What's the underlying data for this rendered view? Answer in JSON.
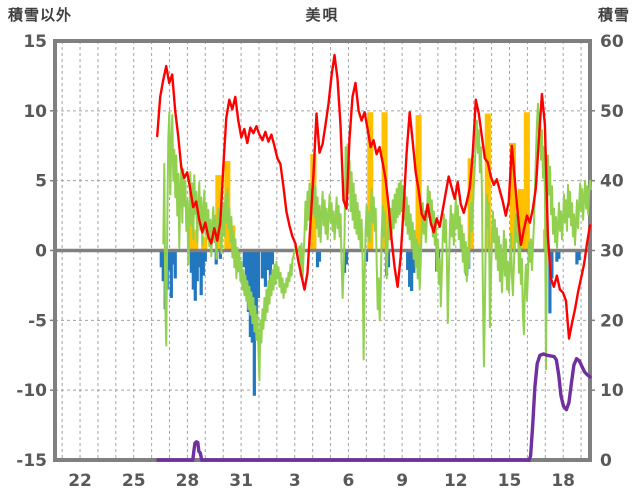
{
  "title": "美唄",
  "header": {
    "left_axis_title": "積雪以外",
    "right_axis_title": "積雪"
  },
  "chart_data": {
    "type": "line+bar",
    "title": "美唄",
    "x_axis": {
      "labels": [
        "22",
        "25",
        "28",
        "31",
        "3",
        "6",
        "9",
        "12",
        "15",
        "18"
      ],
      "label_positions": [
        22,
        25,
        28,
        31,
        34,
        37,
        40,
        43,
        46,
        49
      ],
      "min": 20.6,
      "max": 50.5,
      "unit": "day of month (values above 31 belong to the following month)",
      "grid_interval": 1
    },
    "left_axis": {
      "title": "積雪以外",
      "min": -15,
      "max": 15,
      "ticks": [
        15,
        10,
        5,
        0,
        -5,
        -10,
        -15
      ]
    },
    "right_axis": {
      "title": "積雪",
      "min": 0,
      "max": 60,
      "ticks": [
        60,
        50,
        40,
        30,
        20,
        10,
        0
      ]
    },
    "grid": {
      "color": "#A3A3A3",
      "dash": "3 3"
    },
    "frame_color": "#808080",
    "zero_line_color": "#808080",
    "text_color": "#595959",
    "series": [
      {
        "id": "red_line",
        "type": "line",
        "axis": "left",
        "color": "#FF0000",
        "width": 2.4,
        "x_start": 26.31,
        "x_end": 50.5,
        "values": [
          8.2,
          11.0,
          12.2,
          13.2,
          12.0,
          12.6,
          10.0,
          8.2,
          6.0,
          5.2,
          5.6,
          4.4,
          3.1,
          3.5,
          2.2,
          1.3,
          2.0,
          1.0,
          0.5,
          1.6,
          0.7,
          2.0,
          6.0,
          9.5,
          10.8,
          10.1,
          11.0,
          9.3,
          8.1,
          8.7,
          7.7,
          8.8,
          8.4,
          8.9,
          8.3,
          7.9,
          8.5,
          7.8,
          8.3,
          7.5,
          6.6,
          6.2,
          4.6,
          2.8,
          1.8,
          1.0,
          0.5,
          -0.8,
          -1.8,
          -2.8,
          -1.6,
          2.0,
          5.5,
          9.8,
          7.0,
          7.6,
          9.0,
          10.5,
          12.5,
          14.0,
          12.3,
          9.0,
          3.6,
          3.0,
          8.0,
          11.0,
          12.0,
          10.0,
          9.3,
          9.9,
          8.7,
          7.4,
          7.9,
          6.9,
          7.4,
          6.3,
          5.1,
          3.2,
          0.8,
          -1.2,
          -2.6,
          -0.5,
          3.0,
          7.0,
          9.9,
          7.8,
          5.6,
          4.3,
          2.6,
          2.2,
          3.3,
          2.0,
          1.3,
          2.3,
          1.7,
          2.9,
          4.1,
          5.3,
          4.5,
          3.7,
          4.9,
          3.3,
          2.7,
          3.5,
          4.5,
          7.0,
          10.8,
          9.8,
          8.2,
          6.6,
          6.3,
          5.3,
          4.7,
          5.1,
          4.3,
          3.5,
          2.5,
          3.5,
          7.5,
          5.0,
          2.5,
          0.4,
          1.5,
          2.5,
          2.0,
          3.0,
          4.5,
          8.0,
          11.2,
          9.0,
          1.0,
          -2.0,
          -2.6,
          -1.8,
          -2.8,
          -3.0,
          -3.6,
          -6.3,
          -5.2,
          -4.2,
          -3.0,
          -2.0,
          -1.0,
          0.5,
          1.8
        ]
      },
      {
        "id": "green_line",
        "type": "line",
        "axis": "left",
        "color": "#92D050",
        "width": 2,
        "x_start": 26.65,
        "x_end": 50.56,
        "values": [
          0.5,
          6.2,
          -4.0,
          -6.8,
          2.0,
          8.0,
          9.9,
          4.0,
          7.5,
          9.7,
          5.0,
          7.2,
          3.8,
          6.8,
          2.5,
          5.5,
          0.2,
          4.5,
          6.2,
          2.0,
          5.8,
          3.2,
          5.0,
          1.4,
          3.6,
          -1.0,
          2.6,
          5.6,
          1.8,
          4.8,
          0.8,
          5.4,
          2.6,
          4.2,
          0.6,
          3.2,
          4.9,
          1.5,
          3.8,
          0.4,
          2.8,
          4.3,
          1.2,
          3.4,
          0.8,
          2.9,
          0.3,
          2.2,
          -0.4,
          1.8,
          3.1,
          0.6,
          2.5,
          -0.6,
          1.5,
          3.0,
          0.9,
          2.6,
          -0.2,
          1.8,
          3.4,
          1.0,
          4.0,
          2.0,
          4.4,
          1.6,
          3.0,
          0.6,
          2.4,
          -0.5,
          1.4,
          -1.2,
          0.8,
          -2.0,
          0.2,
          -1.5,
          -0.2,
          -2.2,
          -0.8,
          -2.8,
          -1.4,
          -3.2,
          -1.8,
          -3.6,
          -2.2,
          -4.2,
          -2.6,
          -4.6,
          -3.0,
          -5.2,
          -3.4,
          -5.8,
          -4.0,
          -6.4,
          -4.6,
          -7.0,
          -9.3,
          -5.0,
          -6.6,
          -4.2,
          -5.6,
          -3.4,
          -5.0,
          -2.8,
          -4.4,
          -2.2,
          -3.8,
          -1.8,
          -3.2,
          -1.4,
          -2.8,
          -1.0,
          -2.4,
          -0.8,
          -2.0,
          -1.2,
          -2.6,
          -1.6,
          -3.0,
          -2.0,
          -3.4,
          -2.4,
          -3.0,
          -2.0,
          -2.6,
          -1.6,
          -2.2,
          -1.0,
          -1.8,
          -0.6,
          -0.4,
          0,
          0,
          0,
          0,
          0,
          0.3,
          -1.8,
          0.5,
          -2.2,
          -0.5,
          1.2,
          3.5,
          1.5,
          4.2,
          2.2,
          4.8,
          1.8,
          4.4,
          2.6,
          5.0,
          2.4,
          4.6,
          1.6,
          3.8,
          1.0,
          3.2,
          0.6,
          2.6,
          4.2,
          1.8,
          3.6,
          1.2,
          3.0,
          0.8,
          2.4,
          4.0,
          2.0,
          3.4,
          1.4,
          2.8,
          0.8,
          2.2,
          3.8,
          1.6,
          3.2,
          1.0,
          2.6,
          -1.0,
          -3.4,
          -1.4,
          1.2,
          7.4,
          3.0,
          7.6,
          4.2,
          6.4,
          2.8,
          5.6,
          2.2,
          4.8,
          1.6,
          4.0,
          1.2,
          3.4,
          0.8,
          2.8,
          0.2,
          2.2,
          -0.6,
          -7.8,
          -2.0,
          1.4,
          3.2,
          1.0,
          2.8,
          0.6,
          2.4,
          4.4,
          2.0,
          3.8,
          1.4,
          3.0,
          -1.0,
          -4.2,
          -2.0,
          -5.0,
          -2.6,
          1.2,
          3.2,
          1.0,
          2.8,
          0.4,
          -2.0,
          0.6,
          2.6,
          0.8,
          3.0,
          1.2,
          3.6,
          1.6,
          4.0,
          2.0,
          4.4,
          2.4,
          4.8,
          2.6,
          5.0,
          2.8,
          4.6,
          2.2,
          4.2,
          1.8,
          3.8,
          1.2,
          3.2,
          0.8,
          2.6,
          0.2,
          2.0,
          -0.6,
          1.4,
          -1.2,
          0.8,
          -2.0,
          0.4,
          -2.8,
          -0.8,
          1.6,
          3.4,
          1.2,
          2.8,
          0.6,
          2.2,
          4.6,
          2.4,
          4.2,
          1.8,
          3.6,
          1.0,
          2.8,
          0.4,
          2.0,
          -1.4,
          0.8,
          -2.4,
          -0.6,
          -4.0,
          -1.6,
          1.0,
          2.6,
          0.6,
          2.2,
          -0.4,
          -5.2,
          -1.8,
          1.4,
          3.2,
          1.0,
          2.6,
          0.4,
          2.0,
          3.8,
          1.6,
          3.2,
          0.8,
          2.4,
          0.2,
          1.8,
          -0.8,
          1.2,
          -1.6,
          0.6,
          -2.2,
          0.2,
          -1.2,
          1.6,
          3.4,
          1.4,
          2.8,
          4.6,
          6.2,
          8.0,
          9.3,
          7.0,
          8.6,
          5.6,
          7.4,
          4.4,
          -3.0,
          -8.3,
          -4.0,
          2.0,
          4.0,
          1.6,
          3.4,
          -5.5,
          -2.2,
          1.0,
          2.8,
          0.6,
          2.2,
          -0.6,
          1.6,
          -1.4,
          1.0,
          -2.2,
          0.4,
          -3.0,
          -1.0,
          1.4,
          -1.8,
          0.8,
          -2.8,
          -0.8,
          -3.0,
          -1.2,
          1.2,
          -1.8,
          -3.2,
          -1.0,
          1.0,
          2.6,
          0.6,
          2.2,
          -1.6,
          0.8,
          -2.4,
          -0.6,
          -4.6,
          -6.0,
          -2.6,
          -1.0,
          -3.6,
          -1.6,
          0.6,
          -0.8,
          0.8,
          -1.4,
          0.4,
          2.0,
          4.5,
          7.0,
          9.2,
          10.5,
          8.0,
          9.8,
          6.5,
          8.6,
          5.2,
          7.4,
          3.8,
          -8.5,
          2.0,
          6.8,
          4.0,
          6.0,
          2.6,
          4.6,
          1.2,
          3.0,
          0.6,
          2.4,
          0.2,
          1.8,
          3.4,
          1.4,
          2.8,
          0.8,
          2.2,
          4.0,
          2.0,
          3.6,
          1.4,
          4.7,
          2.4,
          4.2,
          1.8,
          3.4,
          1.0,
          2.6,
          0.4,
          2.0,
          3.6,
          1.6,
          3.2,
          4.8,
          2.8,
          4.4,
          2.2,
          3.8,
          5.0,
          3.0,
          4.6,
          2.6,
          4.2,
          5.0,
          4.4
        ]
      },
      {
        "id": "orange_bars",
        "type": "bar",
        "axis": "left",
        "color": "#FFC000",
        "bar_width_days": 0.34,
        "points": [
          [
            28.16,
            2.3
          ],
          [
            28.44,
            1.5
          ],
          [
            28.94,
            1.0
          ],
          [
            29.73,
            5.4
          ],
          [
            30.23,
            6.4
          ],
          [
            30.51,
            1.8
          ],
          [
            35.04,
            6.9
          ],
          [
            38.22,
            9.9
          ],
          [
            39.02,
            9.9
          ],
          [
            40.92,
            9.7
          ],
          [
            43.83,
            6.6
          ],
          [
            44.79,
            9.8
          ],
          [
            46.19,
            7.7
          ],
          [
            46.64,
            4.4
          ],
          [
            46.97,
            9.9
          ],
          [
            48.04,
            1.5
          ]
        ]
      },
      {
        "id": "blue_bars",
        "type": "bar",
        "axis": "left",
        "color": "#2277BE",
        "bar_width_days": 0.18,
        "points": [
          [
            26.54,
            -1.2
          ],
          [
            26.65,
            -2.2
          ],
          [
            26.76,
            -4.2
          ],
          [
            26.87,
            -2.8
          ],
          [
            26.98,
            -1.4
          ],
          [
            27.1,
            -3.4
          ],
          [
            27.21,
            -1.0
          ],
          [
            27.32,
            -2.0
          ],
          [
            28.22,
            -1.6
          ],
          [
            28.33,
            -2.8
          ],
          [
            28.44,
            -3.6
          ],
          [
            28.55,
            -2.2
          ],
          [
            28.66,
            -1.2
          ],
          [
            28.77,
            -3.2
          ],
          [
            28.89,
            -1.8
          ],
          [
            29.0,
            -0.8
          ],
          [
            29.61,
            -1.0
          ],
          [
            29.84,
            -0.6
          ],
          [
            31.18,
            -1.2
          ],
          [
            31.3,
            -2.4
          ],
          [
            31.41,
            -4.4
          ],
          [
            31.52,
            -6.2
          ],
          [
            31.63,
            -6.6
          ],
          [
            31.74,
            -10.4
          ],
          [
            31.85,
            -6.0
          ],
          [
            31.97,
            -3.4
          ],
          [
            32.19,
            -2.0
          ],
          [
            32.36,
            -2.6
          ],
          [
            32.47,
            -1.4
          ],
          [
            32.64,
            -2.2
          ],
          [
            32.75,
            -1.0
          ],
          [
            35.27,
            -1.2
          ],
          [
            35.38,
            -0.8
          ],
          [
            36.78,
            -1.6
          ],
          [
            36.89,
            -1.0
          ],
          [
            38.01,
            -0.8
          ],
          [
            39.13,
            -1.8
          ],
          [
            39.24,
            -1.2
          ],
          [
            40.31,
            -1.4
          ],
          [
            40.42,
            -2.6
          ],
          [
            40.53,
            -2.9
          ],
          [
            40.65,
            -1.6
          ],
          [
            41.93,
            -1.5
          ],
          [
            42.04,
            -1.0
          ],
          [
            43.61,
            -1.8
          ],
          [
            43.72,
            -1.3
          ],
          [
            48.26,
            -4.5
          ],
          [
            48.37,
            -2.0
          ],
          [
            48.65,
            -0.8
          ],
          [
            48.76,
            -0.6
          ],
          [
            49.77,
            -1.0
          ],
          [
            49.89,
            -0.7
          ]
        ]
      },
      {
        "id": "purple_line",
        "type": "line",
        "axis": "right",
        "color": "#7030A0",
        "width": 3.4,
        "points": [
          [
            26.35,
            0
          ],
          [
            28.3,
            0
          ],
          [
            28.36,
            1.2
          ],
          [
            28.42,
            2.4
          ],
          [
            28.5,
            2.6
          ],
          [
            28.58,
            2.5
          ],
          [
            28.64,
            1.2
          ],
          [
            28.72,
            1.0
          ],
          [
            28.8,
            0
          ],
          [
            46.0,
            0
          ],
          [
            47.1,
            0
          ],
          [
            47.18,
            0.6
          ],
          [
            47.3,
            5.0
          ],
          [
            47.42,
            10.5
          ],
          [
            47.55,
            13.8
          ],
          [
            47.7,
            15.0
          ],
          [
            47.9,
            15.2
          ],
          [
            48.1,
            15.0
          ],
          [
            48.3,
            14.9
          ],
          [
            48.5,
            14.8
          ],
          [
            48.62,
            14.3
          ],
          [
            48.75,
            12.2
          ],
          [
            48.88,
            9.2
          ],
          [
            49.02,
            7.7
          ],
          [
            49.18,
            7.2
          ],
          [
            49.32,
            8.2
          ],
          [
            49.46,
            11.0
          ],
          [
            49.6,
            13.6
          ],
          [
            49.75,
            14.5
          ],
          [
            49.9,
            14.2
          ],
          [
            50.05,
            13.4
          ],
          [
            50.2,
            12.6
          ],
          [
            50.35,
            12.2
          ],
          [
            50.5,
            11.9
          ]
        ]
      }
    ]
  }
}
